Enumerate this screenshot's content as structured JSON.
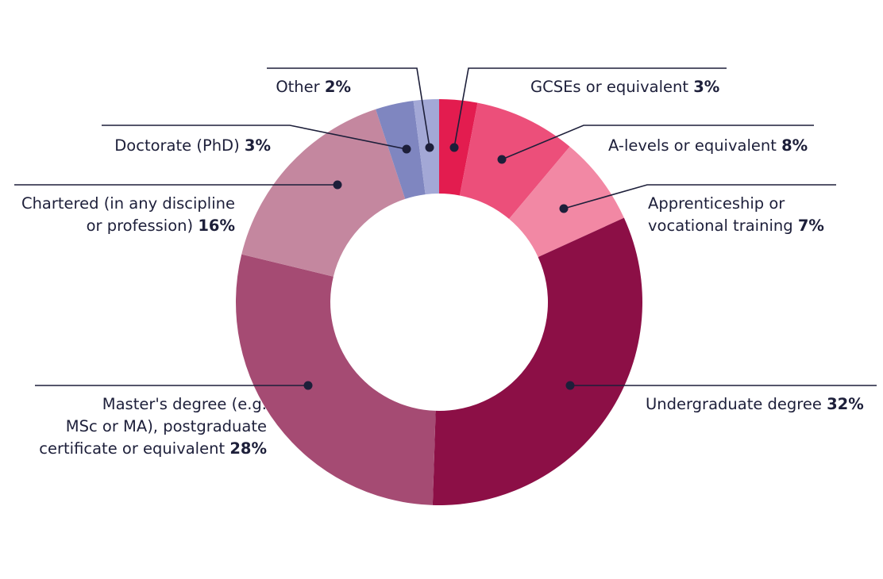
{
  "chart_data": {
    "type": "pie",
    "donut": true,
    "categories": [
      "GCSEs or equivalent",
      "A-levels or equivalent",
      "Apprenticeship or vocational training",
      "Undergraduate degree",
      "Master's degree (e.g. MSc or MA), postgraduate certificate or equivalent",
      "Chartered (in any discipline or profession)",
      "Doctorate (PhD)",
      "Other"
    ],
    "values": [
      3,
      8,
      7,
      32,
      28,
      16,
      3,
      2
    ],
    "colors": [
      "#e31c4f",
      "#ec4f7a",
      "#f288a4",
      "#8c0f46",
      "#a54b73",
      "#c4879f",
      "#7f86c0",
      "#a3a8d6"
    ],
    "labels": [
      {
        "lines": [
          "GCSEs or equivalent"
        ],
        "value": "3%"
      },
      {
        "lines": [
          "A-levels or equivalent"
        ],
        "value": "8%"
      },
      {
        "lines": [
          "Apprenticeship or",
          "vocational training"
        ],
        "value": "7%"
      },
      {
        "lines": [
          "Undergraduate degree"
        ],
        "value": "32%"
      },
      {
        "lines": [
          "Master's degree (e.g.",
          "MSc or MA), postgraduate",
          "certificate or equivalent"
        ],
        "value": "28%"
      },
      {
        "lines": [
          "Chartered (in any discipline",
          "or profession)"
        ],
        "value": "16%"
      },
      {
        "lines": [
          "Doctorate (PhD)"
        ],
        "value": "3%"
      },
      {
        "lines": [
          "Other"
        ],
        "value": "2%"
      }
    ],
    "legend": "callouts"
  }
}
